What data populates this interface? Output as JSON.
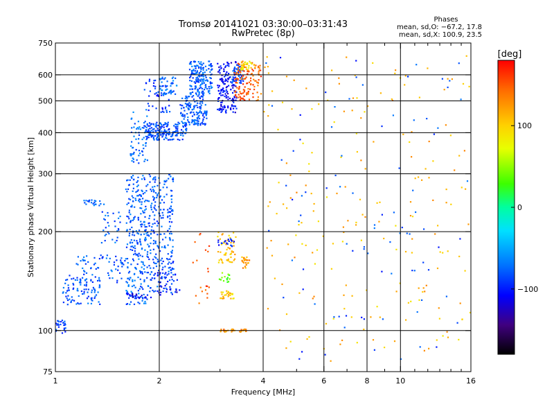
{
  "chart_data": {
    "type": "scatter",
    "title": "Tromsø 20141021 03:30:00–03:31:43",
    "subtitle": "RwPretec (8p)",
    "phase_info": {
      "heading": "Phases",
      "line1": "mean, sd,O: −67.2, 17.8",
      "line2": "mean, sd,X: 100.9, 23.5"
    },
    "xlabel": "Frequency [MHz]",
    "ylabel": "Stationary phase Virtual Height [km]",
    "x_scale": "log",
    "y_scale": "log",
    "xlim": [
      1,
      16
    ],
    "ylim": [
      75,
      750
    ],
    "x_ticks": [
      1,
      2,
      4,
      6,
      8,
      10,
      16
    ],
    "x_tick_labels": [
      "1",
      "2",
      "4",
      "6",
      "8",
      "10",
      "16"
    ],
    "y_ticks": [
      75,
      100,
      200,
      300,
      400,
      500,
      600,
      750
    ],
    "y_tick_labels": [
      "75",
      "100",
      "200",
      "300",
      "400",
      "500",
      "600",
      "750"
    ],
    "grid_x": [
      2,
      4,
      6,
      8,
      10
    ],
    "grid_y": [
      100,
      200,
      300,
      400,
      500,
      600
    ],
    "grid": true,
    "colorbar": {
      "label": "[deg]",
      "range": [
        -180,
        180
      ],
      "ticks": [
        100,
        0,
        -100
      ],
      "tick_labels": [
        "100",
        "0",
        "−100"
      ]
    },
    "point_groups": [
      {
        "x": [
          1.0,
          1.07
        ],
        "y": [
          98,
          108
        ],
        "phase": -85,
        "count": 25
      },
      {
        "x": [
          1.05,
          1.35
        ],
        "y": [
          120,
          148
        ],
        "phase": -80,
        "count": 90
      },
      {
        "x": [
          1.15,
          1.6
        ],
        "y": [
          140,
          170
        ],
        "phase": -78,
        "count": 70
      },
      {
        "x": [
          1.35,
          1.55
        ],
        "y": [
          185,
          230
        ],
        "phase": -75,
        "count": 30
      },
      {
        "x": [
          1.2,
          1.4
        ],
        "y": [
          240,
          250
        ],
        "phase": -72,
        "count": 20
      },
      {
        "x": [
          1.6,
          1.85
        ],
        "y": [
          120,
          300
        ],
        "phase": -75,
        "count": 260
      },
      {
        "x": [
          1.85,
          2.2
        ],
        "y": [
          130,
          300
        ],
        "phase": -80,
        "count": 260
      },
      {
        "x": [
          1.6,
          1.9
        ],
        "y": [
          125,
          130
        ],
        "phase": -110,
        "count": 25
      },
      {
        "x": [
          1.95,
          2.3
        ],
        "y": [
          128,
          150
        ],
        "phase": -108,
        "count": 30
      },
      {
        "x": [
          1.65,
          1.85
        ],
        "y": [
          320,
          470
        ],
        "phase": -72,
        "count": 60
      },
      {
        "x": [
          1.8,
          2.4
        ],
        "y": [
          380,
          430
        ],
        "phase": -85,
        "count": 180
      },
      {
        "x": [
          2.3,
          2.75
        ],
        "y": [
          420,
          520
        ],
        "phase": -78,
        "count": 150
      },
      {
        "x": [
          2.45,
          2.85
        ],
        "y": [
          520,
          660
        ],
        "phase": -75,
        "count": 180
      },
      {
        "x": [
          1.8,
          2.2
        ],
        "y": [
          460,
          600
        ],
        "phase": -90,
        "count": 50
      },
      {
        "x": [
          2.0,
          2.25
        ],
        "y": [
          520,
          590
        ],
        "phase": -70,
        "count": 40
      },
      {
        "x": [
          2.95,
          3.35
        ],
        "y": [
          460,
          660
        ],
        "phase": -108,
        "count": 160
      },
      {
        "x": [
          3.25,
          3.5
        ],
        "y": [
          560,
          650
        ],
        "phase": -82,
        "count": 45
      },
      {
        "x": [
          3.3,
          3.95
        ],
        "y": [
          500,
          660
        ],
        "phase": 145,
        "count": 120
      },
      {
        "x": [
          3.45,
          3.8
        ],
        "y": [
          620,
          660
        ],
        "phase": 95,
        "count": 35
      },
      {
        "x": [
          2.95,
          3.35
        ],
        "y": [
          160,
          200
        ],
        "phase": 108,
        "count": 50
      },
      {
        "x": [
          2.95,
          3.3
        ],
        "y": [
          180,
          190
        ],
        "phase": -105,
        "count": 18
      },
      {
        "x": [
          2.95,
          3.2
        ],
        "y": [
          140,
          150
        ],
        "phase": 40,
        "count": 15
      },
      {
        "x": [
          3.0,
          3.3
        ],
        "y": [
          125,
          132
        ],
        "phase": 105,
        "count": 25
      },
      {
        "x": [
          3.45,
          3.65
        ],
        "y": [
          155,
          168
        ],
        "phase": 120,
        "count": 25
      },
      {
        "x": [
          3.0,
          3.6
        ],
        "y": [
          99,
          101
        ],
        "phase": 125,
        "count": 30
      },
      {
        "x": [
          2.5,
          2.8
        ],
        "y": [
          120,
          200
        ],
        "phase": 150,
        "count": 20
      },
      {
        "x": [
          4.0,
          16.0
        ],
        "y": [
          80,
          700
        ],
        "phase": 110,
        "count": 200
      },
      {
        "x": [
          4.0,
          16.0
        ],
        "y": [
          80,
          700
        ],
        "phase": -85,
        "count": 90
      }
    ]
  }
}
